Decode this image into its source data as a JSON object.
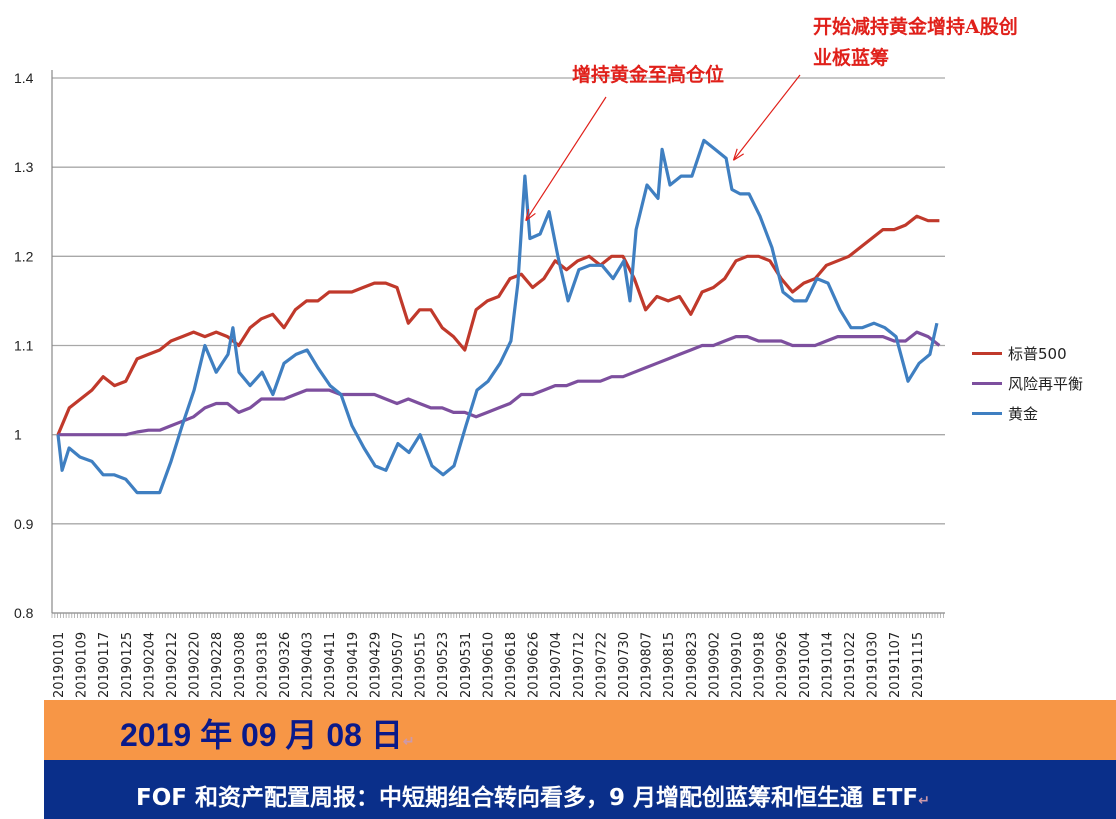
{
  "chart_data": {
    "type": "line",
    "title": "",
    "xlabel": "",
    "ylabel": "",
    "ylim": [
      0.8,
      1.4
    ],
    "yticks": [
      "0.8",
      "0.9",
      "1",
      "1.1",
      "1.2",
      "1.3",
      "1.4"
    ],
    "grid": true,
    "legend_position": "right",
    "x_tick_labels": [
      "20190101",
      "20190109",
      "20190117",
      "20190125",
      "20190204",
      "20190212",
      "20190220",
      "20190228",
      "20190308",
      "20190318",
      "20190326",
      "20190403",
      "20190411",
      "20190419",
      "20190429",
      "20190507",
      "20190515",
      "20190523",
      "20190531",
      "20190610",
      "20190618",
      "20190626",
      "20190704",
      "20190712",
      "20190722",
      "20190730",
      "20190807",
      "20190815",
      "20190823",
      "20190902",
      "20190910",
      "20190918",
      "20190926",
      "20191004",
      "20191014",
      "20191022",
      "20191030",
      "20191107",
      "20191115"
    ],
    "x_note": "x values are positions along the date axis in tick-label units (0 = 20190101, 38 = 20191115)",
    "series": [
      {
        "name": "标普500",
        "color": "#c0392b",
        "x_step": 0.5,
        "values": [
          1.0,
          1.03,
          1.04,
          1.05,
          1.065,
          1.055,
          1.06,
          1.085,
          1.09,
          1.095,
          1.105,
          1.11,
          1.115,
          1.11,
          1.115,
          1.11,
          1.1,
          1.12,
          1.13,
          1.135,
          1.12,
          1.14,
          1.15,
          1.15,
          1.16,
          1.16,
          1.16,
          1.165,
          1.17,
          1.17,
          1.165,
          1.125,
          1.14,
          1.14,
          1.12,
          1.11,
          1.095,
          1.14,
          1.15,
          1.155,
          1.175,
          1.18,
          1.165,
          1.175,
          1.195,
          1.185,
          1.195,
          1.2,
          1.19,
          1.2,
          1.2,
          1.175,
          1.14,
          1.155,
          1.15,
          1.155,
          1.135,
          1.16,
          1.165,
          1.175,
          1.195,
          1.2,
          1.2,
          1.195,
          1.175,
          1.16,
          1.17,
          1.175,
          1.19,
          1.195,
          1.2,
          1.21,
          1.22,
          1.23,
          1.23,
          1.235,
          1.245,
          1.24,
          1.24
        ]
      },
      {
        "name": "风险再平衡",
        "color": "#7d4f9e",
        "x_step": 0.5,
        "values": [
          1.0,
          1.0,
          1.0,
          1.0,
          1.0,
          1.0,
          1.0,
          1.003,
          1.005,
          1.005,
          1.01,
          1.015,
          1.02,
          1.03,
          1.035,
          1.035,
          1.025,
          1.03,
          1.04,
          1.04,
          1.04,
          1.045,
          1.05,
          1.05,
          1.05,
          1.045,
          1.045,
          1.045,
          1.045,
          1.04,
          1.035,
          1.04,
          1.035,
          1.03,
          1.03,
          1.025,
          1.025,
          1.02,
          1.025,
          1.03,
          1.035,
          1.045,
          1.045,
          1.05,
          1.055,
          1.055,
          1.06,
          1.06,
          1.06,
          1.065,
          1.065,
          1.07,
          1.075,
          1.08,
          1.085,
          1.09,
          1.095,
          1.1,
          1.1,
          1.105,
          1.11,
          1.11,
          1.105,
          1.105,
          1.105,
          1.1,
          1.1,
          1.1,
          1.105,
          1.11,
          1.11,
          1.11,
          1.11,
          1.11,
          1.105,
          1.105,
          1.115,
          1.11,
          1.1
        ]
      },
      {
        "name": "黄金",
        "color": "#3f7fc1",
        "points": [
          [
            0,
            1.0
          ],
          [
            0.18,
            0.96
          ],
          [
            0.49,
            0.985
          ],
          [
            0.97,
            0.975
          ],
          [
            1.5,
            0.97
          ],
          [
            2,
            0.955
          ],
          [
            2.48,
            0.955
          ],
          [
            3,
            0.95
          ],
          [
            3.5,
            0.935
          ],
          [
            4,
            0.935
          ],
          [
            4.5,
            0.935
          ],
          [
            5,
            0.97
          ],
          [
            5.49,
            1.01
          ],
          [
            6.02,
            1.05
          ],
          [
            6.5,
            1.1
          ],
          [
            7,
            1.07
          ],
          [
            7.52,
            1.09
          ],
          [
            7.74,
            1.12
          ],
          [
            8.01,
            1.07
          ],
          [
            8.5,
            1.055
          ],
          [
            9.03,
            1.07
          ],
          [
            9.51,
            1.045
          ],
          [
            10,
            1.08
          ],
          [
            10.53,
            1.09
          ],
          [
            11.02,
            1.095
          ],
          [
            11.5,
            1.075
          ],
          [
            12.04,
            1.055
          ],
          [
            12.52,
            1.045
          ],
          [
            13.01,
            1.01
          ],
          [
            13.54,
            0.985
          ],
          [
            14.03,
            0.965
          ],
          [
            14.51,
            0.96
          ],
          [
            15.04,
            0.99
          ],
          [
            15.53,
            0.98
          ],
          [
            16.02,
            1.0
          ],
          [
            16.55,
            0.965
          ],
          [
            17.04,
            0.955
          ],
          [
            17.52,
            0.965
          ],
          [
            18.05,
            1.01
          ],
          [
            18.54,
            1.05
          ],
          [
            19.03,
            1.06
          ],
          [
            19.56,
            1.08
          ],
          [
            20.04,
            1.105
          ],
          [
            20.35,
            1.17
          ],
          [
            20.66,
            1.29
          ],
          [
            20.88,
            1.22
          ],
          [
            21.33,
            1.225
          ],
          [
            21.73,
            1.25
          ],
          [
            22.12,
            1.2
          ],
          [
            22.57,
            1.15
          ],
          [
            23.05,
            1.185
          ],
          [
            23.54,
            1.19
          ],
          [
            24.07,
            1.19
          ],
          [
            24.56,
            1.175
          ],
          [
            25.04,
            1.195
          ],
          [
            25.31,
            1.15
          ],
          [
            25.58,
            1.23
          ],
          [
            26.06,
            1.28
          ],
          [
            26.55,
            1.265
          ],
          [
            26.73,
            1.32
          ],
          [
            27.08,
            1.28
          ],
          [
            27.57,
            1.29
          ],
          [
            28.05,
            1.29
          ],
          [
            28.58,
            1.33
          ],
          [
            29.07,
            1.32
          ],
          [
            29.56,
            1.31
          ],
          [
            29.82,
            1.275
          ],
          [
            30.18,
            1.27
          ],
          [
            30.58,
            1.27
          ],
          [
            31.06,
            1.245
          ],
          [
            31.59,
            1.21
          ],
          [
            32.08,
            1.16
          ],
          [
            32.57,
            1.15
          ],
          [
            33.1,
            1.15
          ],
          [
            33.58,
            1.175
          ],
          [
            34.07,
            1.17
          ],
          [
            34.6,
            1.14
          ],
          [
            35.09,
            1.12
          ],
          [
            35.58,
            1.12
          ],
          [
            36.1,
            1.125
          ],
          [
            36.59,
            1.12
          ],
          [
            37.08,
            1.11
          ],
          [
            37.61,
            1.06
          ],
          [
            38.1,
            1.08
          ],
          [
            38.58,
            1.09
          ],
          [
            38.89,
            1.125
          ]
        ]
      }
    ],
    "annotations": [
      {
        "text": "增持黄金至高仓位",
        "x": 20.7,
        "y": 1.24
      },
      {
        "text_lines": [
          "开始减持黄金增持A股创",
          "业板蓝筹"
        ],
        "x": 29.8,
        "y": 1.31
      }
    ]
  },
  "banner": {
    "date": "2019 年 09 月 08 日",
    "title": "FOF 和资产配置周报：中短期组合转向看多，9 月增配创蓝筹和恒生通 ETF",
    "return_mark": "↵"
  }
}
